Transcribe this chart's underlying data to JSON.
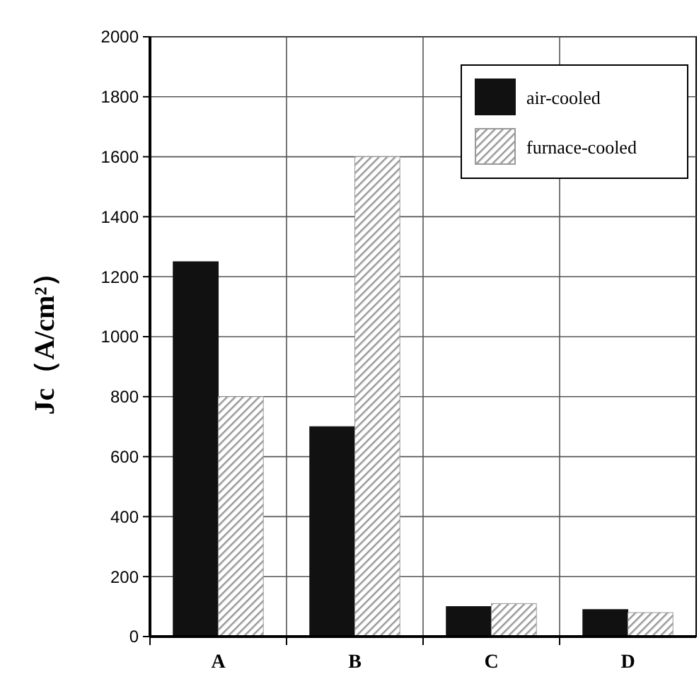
{
  "chart_data": {
    "type": "bar",
    "ylabel": "Jc（A/cm²）",
    "categories": [
      "A",
      "B",
      "C",
      "D"
    ],
    "series": [
      {
        "name": "air-cooled",
        "color": "#111111",
        "values": [
          1250,
          700,
          100,
          90
        ]
      },
      {
        "name": "furnace-cooled",
        "color": "#999999",
        "values": [
          800,
          1600,
          110,
          80
        ]
      }
    ],
    "ylim": [
      0,
      2000
    ],
    "yticks": [
      0,
      200,
      400,
      600,
      800,
      1000,
      1200,
      1400,
      1600,
      1800,
      2000
    ],
    "grid": true,
    "legend": "top right"
  }
}
